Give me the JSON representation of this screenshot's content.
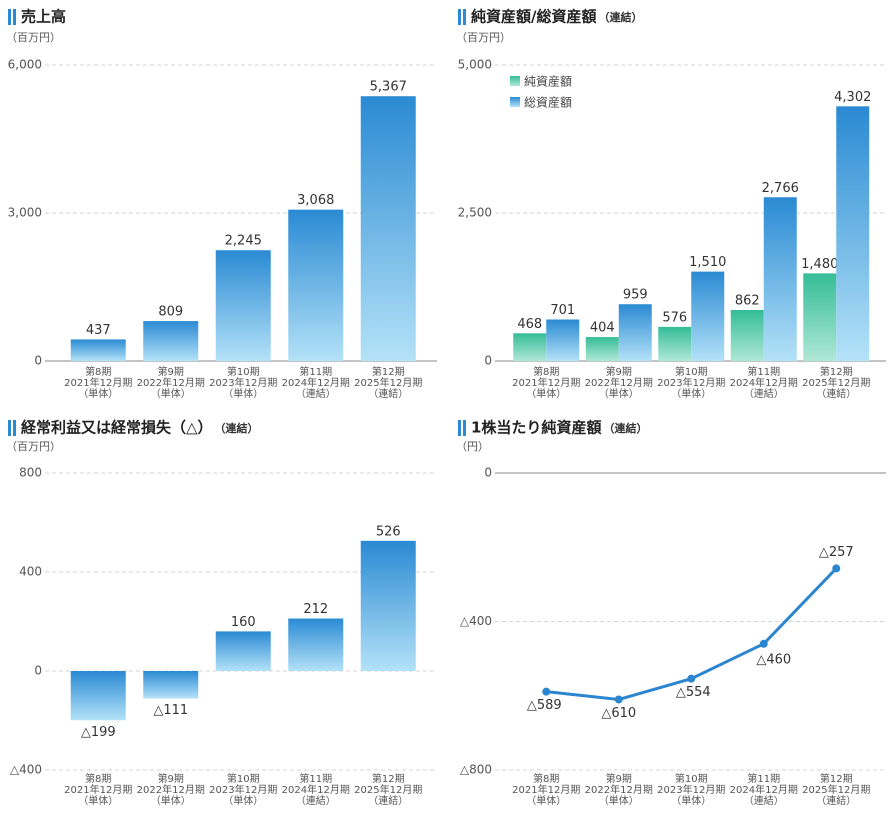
{
  "chart_data": [
    {
      "type": "bar",
      "title": "売上高",
      "unit": "（百万円）",
      "categories": [
        [
          "第8期",
          "2021年12月期",
          "（単体）"
        ],
        [
          "第9期",
          "2022年12月期",
          "（単体）"
        ],
        [
          "第10期",
          "2023年12月期",
          "（単体）"
        ],
        [
          "第11期",
          "2024年12月期",
          "（連結）"
        ],
        [
          "第12期",
          "2025年12月期",
          "（連結）"
        ]
      ],
      "values": [
        437,
        809,
        2245,
        3068,
        5367
      ],
      "value_labels": [
        "437",
        "809",
        "2,245",
        "3,068",
        "5,367"
      ],
      "color": "#2a8ad3",
      "color_light": "#b4e2f8",
      "ylim": [
        0,
        6000
      ],
      "yticks": [
        0,
        {
          "value": 3000,
          "label": "3,000"
        },
        {
          "value": 6000,
          "label": "6,000"
        }
      ],
      "grid": true
    },
    {
      "type": "grouped_bar",
      "title": "純資産額/総資産額",
      "title_note": "（連結）",
      "unit": "（百万円）",
      "categories": [
        [
          "第8期",
          "2021年12月期",
          "（単体）"
        ],
        [
          "第9期",
          "2022年12月期",
          "（単体）"
        ],
        [
          "第10期",
          "2023年12月期",
          "（単体）"
        ],
        [
          "第11期",
          "2024年12月期",
          "（連結）"
        ],
        [
          "第12期",
          "2025年12月期",
          "（連結）"
        ]
      ],
      "series": [
        {
          "name": "純資産額",
          "color": "#34bd97",
          "color_light": "#b0e8d6",
          "values": [
            468,
            404,
            576,
            862,
            1480
          ],
          "value_labels": [
            "468",
            "404",
            "576",
            "862",
            "1,480"
          ]
        },
        {
          "name": "総資産額",
          "color": "#2a8ad3",
          "color_light": "#b4e2f8",
          "values": [
            701,
            959,
            1510,
            2766,
            4302
          ],
          "value_labels": [
            "701",
            "959",
            "1,510",
            "2,766",
            "4,302"
          ]
        }
      ],
      "legend": "top-left",
      "ylim": [
        0,
        5000
      ],
      "yticks": [
        0,
        {
          "value": 2500,
          "label": "2,500"
        },
        {
          "value": 5000,
          "label": "5,000"
        }
      ],
      "grid": true
    },
    {
      "type": "bar",
      "title": "経常利益又は経常損失（△）",
      "title_note": "（連結）",
      "unit": "（百万円）",
      "categories": [
        [
          "第8期",
          "2021年12月期",
          "（単体）"
        ],
        [
          "第9期",
          "2022年12月期",
          "（単体）"
        ],
        [
          "第10期",
          "2023年12月期",
          "（単体）"
        ],
        [
          "第11期",
          "2024年12月期",
          "（連結）"
        ],
        [
          "第12期",
          "2025年12月期",
          "（連結）"
        ]
      ],
      "values": [
        -199,
        -111,
        160,
        212,
        526
      ],
      "value_labels": [
        "△199",
        "△111",
        "160",
        "212",
        "526"
      ],
      "color": "#2a8ad3",
      "color_light": "#b4e2f8",
      "ylim": [
        -400,
        800
      ],
      "yticks": [
        {
          "value": -400,
          "label": "△400"
        },
        0,
        400,
        800
      ],
      "grid": true
    },
    {
      "type": "line",
      "title": "1株当たり純資産額",
      "title_note": "（連結）",
      "unit": "（円）",
      "categories": [
        [
          "第8期",
          "2021年12月期",
          "（単体）"
        ],
        [
          "第9期",
          "2022年12月期",
          "（単体）"
        ],
        [
          "第10期",
          "2023年12月期",
          "（単体）"
        ],
        [
          "第11期",
          "2024年12月期",
          "（連結）"
        ],
        [
          "第12期",
          "2025年12月期",
          "（連結）"
        ]
      ],
      "values": [
        -589,
        -610,
        -554,
        -460,
        -257
      ],
      "value_labels": [
        "△589",
        "△610",
        "△554",
        "△460",
        "△257"
      ],
      "color": "#2b86cf",
      "ylim": [
        -800,
        0
      ],
      "yticks": [
        {
          "value": -800,
          "label": "△800"
        },
        {
          "value": -400,
          "label": "△400"
        },
        0
      ],
      "grid": true
    }
  ]
}
